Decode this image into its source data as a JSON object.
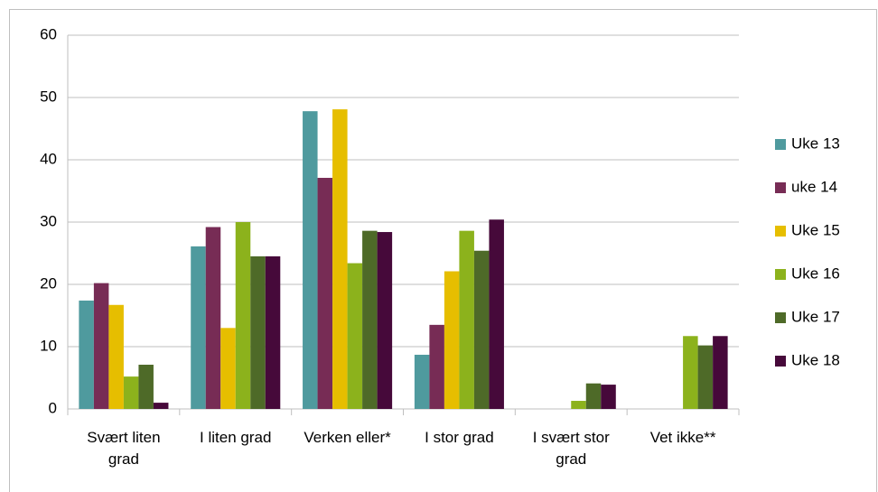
{
  "chart_data": {
    "type": "bar",
    "categories": [
      "Svært liten grad",
      "I liten grad",
      "Verken eller*",
      "I stor grad",
      "I svært stor grad",
      "Vet ikke**"
    ],
    "series": [
      {
        "name": "Uke 13",
        "color": "#4f9a9e",
        "values": [
          17.4,
          26.1,
          47.8,
          8.7,
          null,
          null
        ]
      },
      {
        "name": "uke 14",
        "color": "#772c55",
        "values": [
          20.2,
          29.2,
          37.1,
          13.5,
          null,
          null
        ]
      },
      {
        "name": "Uke 15",
        "color": "#e6be00",
        "values": [
          16.7,
          13.0,
          48.1,
          22.1,
          null,
          null
        ]
      },
      {
        "name": "Uke 16",
        "color": "#8cb21c",
        "values": [
          5.2,
          30.0,
          23.4,
          28.6,
          1.3,
          11.7
        ]
      },
      {
        "name": "Uke 17",
        "color": "#4e6a28",
        "values": [
          7.1,
          24.5,
          28.6,
          25.4,
          4.1,
          10.2
        ]
      },
      {
        "name": "Uke 18",
        "color": "#46093a",
        "values": [
          1.0,
          24.5,
          28.4,
          30.4,
          3.9,
          11.7
        ]
      }
    ],
    "ylim": [
      0,
      60
    ],
    "yticks": [
      0,
      10,
      20,
      30,
      40,
      50,
      60
    ],
    "grid": true,
    "legend": "right"
  }
}
